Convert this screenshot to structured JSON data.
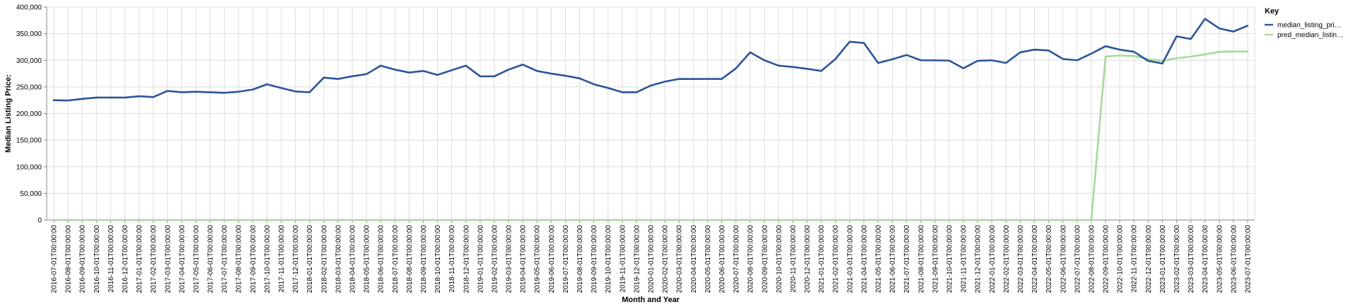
{
  "chart_data": {
    "type": "line",
    "title": "",
    "xlabel": "Month and Year",
    "ylabel": "Median Listing Price:",
    "ylim": [
      0,
      400000
    ],
    "y_ticks": [
      0,
      50000,
      100000,
      150000,
      200000,
      250000,
      300000,
      350000,
      400000
    ],
    "y_tick_labels": [
      "0",
      "50,000",
      "100,000",
      "150,000",
      "200,000",
      "250,000",
      "300,000",
      "350,000",
      "400,000"
    ],
    "grid": true,
    "legend": {
      "title": "Key",
      "placement": "top-right",
      "entries": [
        {
          "label": "median_listing_pri…",
          "color": "#2c5597"
        },
        {
          "label": "pred_median_listin…",
          "color": "#a6d99b"
        }
      ]
    },
    "x": [
      "2016-07-01T00:00:00",
      "2016-08-01T00:00:00",
      "2016-09-01T00:00:00",
      "2016-10-01T00:00:00",
      "2016-11-01T00:00:00",
      "2016-12-01T00:00:00",
      "2017-01-01T00:00:00",
      "2017-02-01T00:00:00",
      "2017-03-01T00:00:00",
      "2017-04-01T00:00:00",
      "2017-05-01T00:00:00",
      "2017-06-01T00:00:00",
      "2017-07-01T00:00:00",
      "2017-08-01T00:00:00",
      "2017-09-01T00:00:00",
      "2017-10-01T00:00:00",
      "2017-11-01T00:00:00",
      "2017-12-01T00:00:00",
      "2018-01-01T00:00:00",
      "2018-02-01T00:00:00",
      "2018-03-01T00:00:00",
      "2018-04-01T00:00:00",
      "2018-05-01T00:00:00",
      "2018-06-01T00:00:00",
      "2018-07-01T00:00:00",
      "2018-08-01T00:00:00",
      "2018-09-01T00:00:00",
      "2018-10-01T00:00:00",
      "2018-11-01T00:00:00",
      "2018-12-01T00:00:00",
      "2019-01-01T00:00:00",
      "2019-02-01T00:00:00",
      "2019-03-01T00:00:00",
      "2019-04-01T00:00:00",
      "2019-05-01T00:00:00",
      "2019-06-01T00:00:00",
      "2019-07-01T00:00:00",
      "2019-08-01T00:00:00",
      "2019-09-01T00:00:00",
      "2019-10-01T00:00:00",
      "2019-11-01T00:00:00",
      "2019-12-01T00:00:00",
      "2020-01-01T00:00:00",
      "2020-02-01T00:00:00",
      "2020-03-01T00:00:00",
      "2020-04-01T00:00:00",
      "2020-05-01T00:00:00",
      "2020-06-01T00:00:00",
      "2020-07-01T00:00:00",
      "2020-08-01T00:00:00",
      "2020-09-01T00:00:00",
      "2020-10-01T00:00:00",
      "2020-11-01T00:00:00",
      "2020-12-01T00:00:00",
      "2021-01-01T00:00:00",
      "2021-02-01T00:00:00",
      "2021-03-01T00:00:00",
      "2021-04-01T00:00:00",
      "2021-05-01T00:00:00",
      "2021-06-01T00:00:00",
      "2021-07-01T00:00:00",
      "2021-08-01T00:00:00",
      "2021-09-01T00:00:00",
      "2021-10-01T00:00:00",
      "2021-11-01T00:00:00",
      "2021-12-01T00:00:00",
      "2022-01-01T00:00:00",
      "2022-02-01T00:00:00",
      "2022-03-01T00:00:00",
      "2022-04-01T00:00:00",
      "2022-05-01T00:00:00",
      "2022-06-01T00:00:00",
      "2022-07-01T00:00:00",
      "2022-08-01T00:00:00",
      "2022-09-01T00:00:00",
      "2022-10-01T00:00:00",
      "2022-11-01T00:00:00",
      "2022-12-01T00:00:00",
      "2023-01-01T00:00:00",
      "2023-02-01T00:00:00",
      "2023-03-01T00:00:00",
      "2023-04-01T00:00:00",
      "2023-05-01T00:00:00",
      "2023-06-01T00:00:00",
      "2023-07-01T00:00:00"
    ],
    "series": [
      {
        "name": "median_listing_pri…",
        "color": "#2c5597",
        "values": [
          225000,
          224500,
          227500,
          230000,
          230000,
          230000,
          232500,
          231000,
          242500,
          240000,
          241000,
          240000,
          239000,
          241000,
          245000,
          255000,
          248000,
          241500,
          240000,
          267500,
          264900,
          270000,
          274000,
          289900,
          282500,
          277000,
          280000,
          272500,
          281500,
          290000,
          269900,
          270000,
          282500,
          292000,
          280000,
          275000,
          271000,
          266000,
          255000,
          248000,
          240000,
          240000,
          252500,
          260000,
          265000,
          264900,
          265000,
          265000,
          285000,
          315000,
          300000,
          290000,
          287500,
          284000,
          280000,
          302500,
          335000,
          332500,
          295000,
          302000,
          310000,
          300000,
          300000,
          299500,
          285000,
          299000,
          300000,
          295000,
          315000,
          320000,
          318500,
          302500,
          300000,
          312500,
          326500,
          320000,
          316000,
          299000,
          294000,
          345000,
          340000,
          378000,
          360000,
          354000,
          365000
        ]
      },
      {
        "name": "pred_median_listin…",
        "color": "#a6d99b",
        "values": [
          0,
          0,
          0,
          0,
          0,
          0,
          0,
          0,
          0,
          0,
          0,
          0,
          0,
          0,
          0,
          0,
          0,
          0,
          0,
          0,
          0,
          0,
          0,
          0,
          0,
          0,
          0,
          0,
          0,
          0,
          0,
          0,
          0,
          0,
          0,
          0,
          0,
          0,
          0,
          0,
          0,
          0,
          0,
          0,
          0,
          0,
          0,
          0,
          0,
          0,
          0,
          0,
          0,
          0,
          0,
          0,
          0,
          0,
          0,
          0,
          0,
          0,
          0,
          0,
          0,
          0,
          0,
          0,
          0,
          0,
          0,
          0,
          0,
          0,
          307000,
          309000,
          308000,
          302000,
          299000,
          304000,
          307000,
          311000,
          316000,
          316500,
          316500
        ]
      }
    ]
  }
}
